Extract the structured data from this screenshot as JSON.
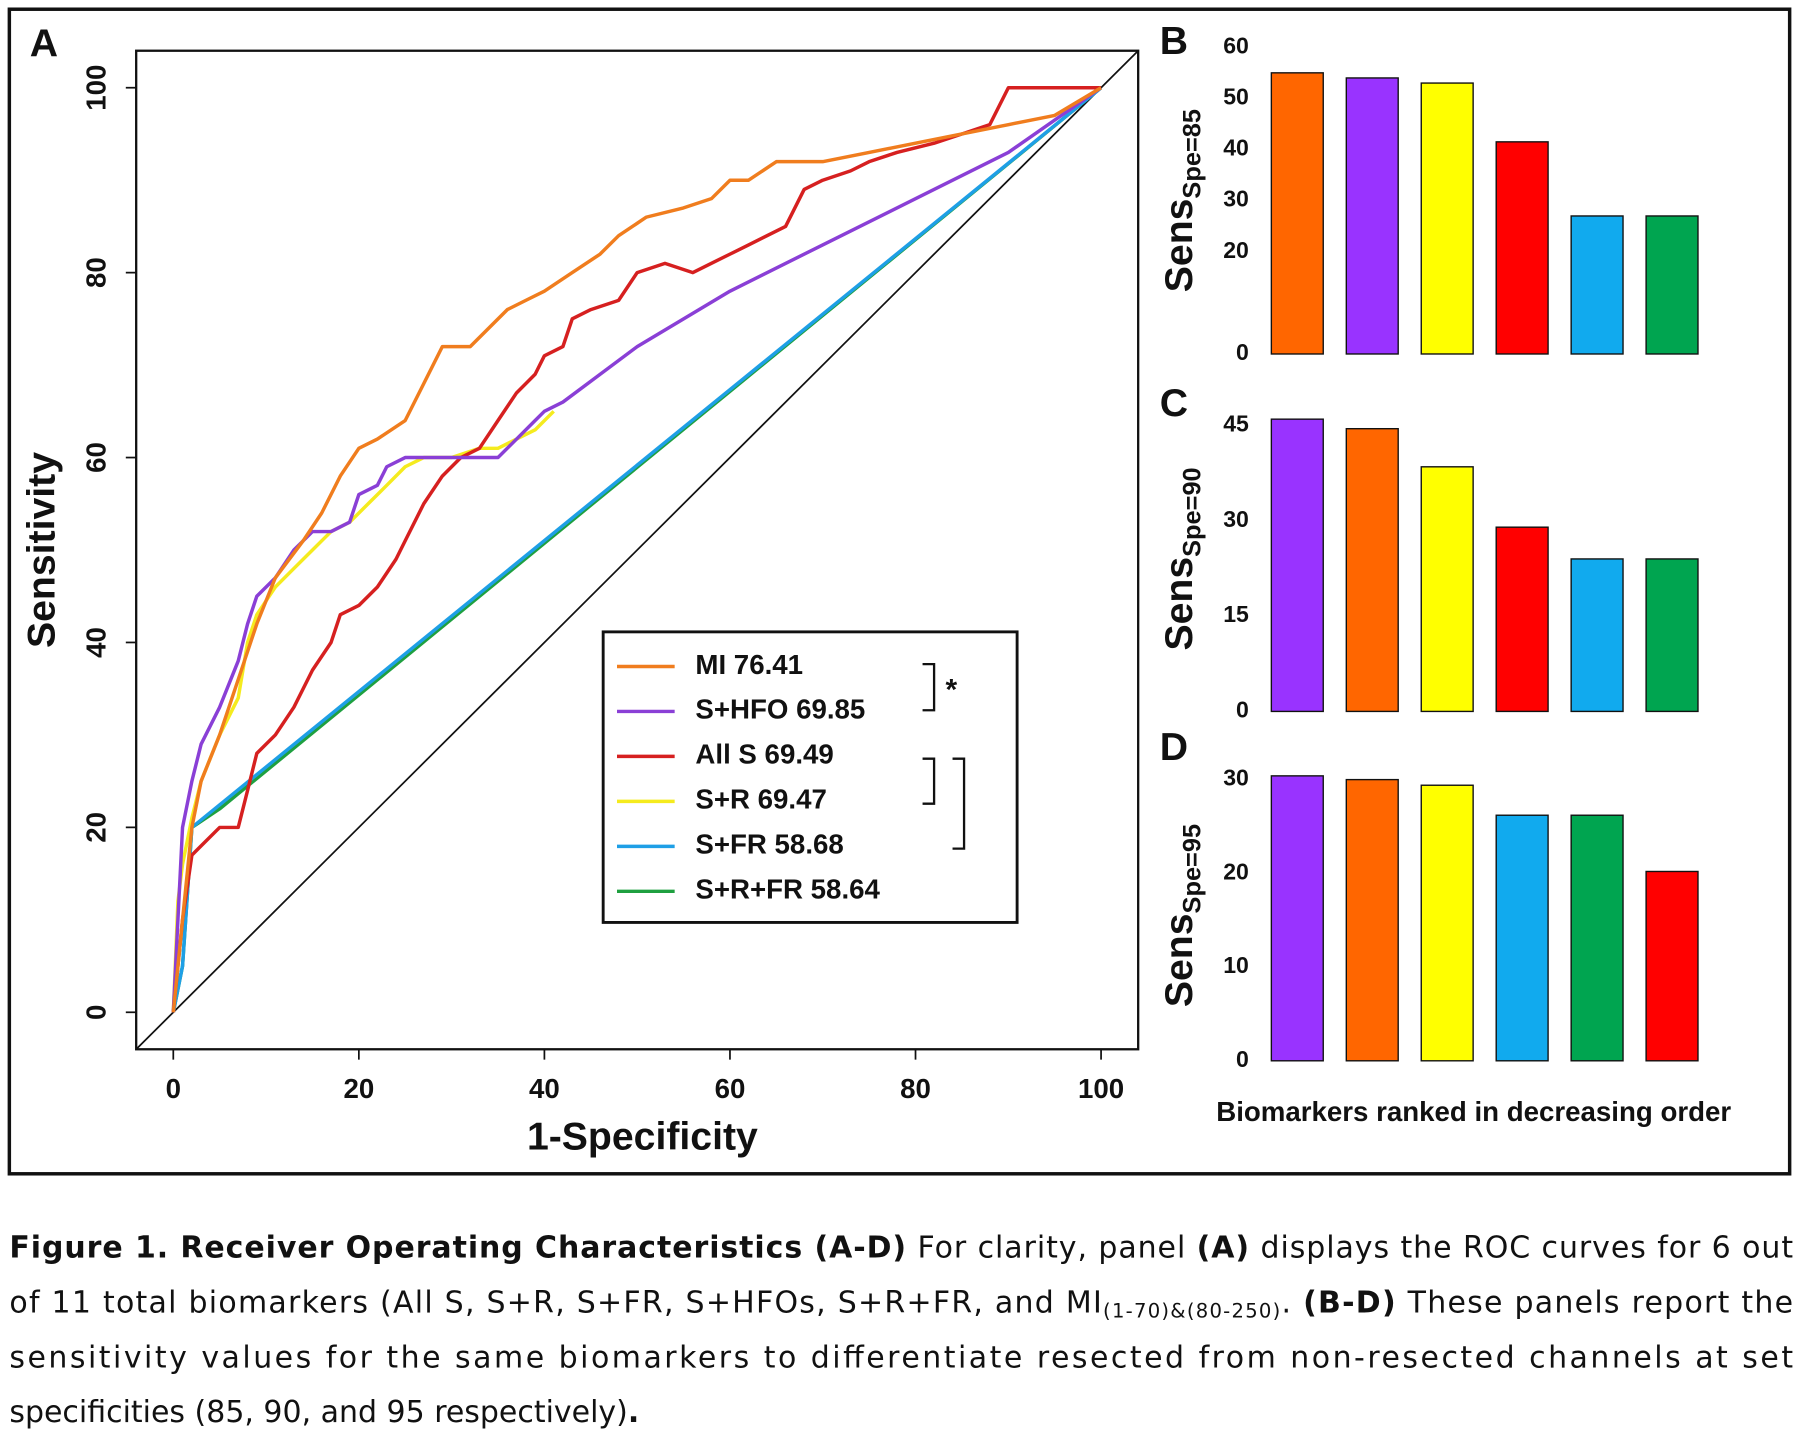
{
  "chart_data": [
    {
      "type": "line",
      "panel_label": "A",
      "xlabel": "1-Specificity",
      "ylabel": "Sensitivity",
      "xlim": [
        -4,
        104
      ],
      "ylim": [
        -4,
        104
      ],
      "xticks": [
        0,
        20,
        40,
        60,
        80,
        100
      ],
      "yticks": [
        0,
        20,
        40,
        60,
        80,
        100
      ],
      "legend": "lower right",
      "annotation": "*",
      "series": [
        {
          "name": "MI 76.41",
          "color": "#f07d1e",
          "x": [
            0,
            1,
            2,
            3,
            5,
            7,
            9,
            11,
            14,
            16,
            18,
            20,
            22,
            25,
            27,
            29,
            32,
            34,
            36,
            38,
            40,
            43,
            46,
            48,
            51,
            55,
            58,
            60,
            62,
            65,
            70,
            75,
            80,
            85,
            90,
            95,
            100
          ],
          "values": [
            0,
            10,
            20,
            25,
            30,
            36,
            42,
            47,
            51,
            54,
            58,
            61,
            62,
            64,
            68,
            72,
            72,
            74,
            76,
            77,
            78,
            80,
            82,
            84,
            86,
            87,
            88,
            90,
            90,
            92,
            92,
            93,
            94,
            95,
            96,
            97,
            100
          ]
        },
        {
          "name": "S+HFO 69.85",
          "color": "#8a3fd6",
          "x": [
            0,
            0.5,
            1,
            2,
            3,
            5,
            7,
            8,
            9,
            11,
            13,
            15,
            17,
            19,
            20,
            22,
            23,
            25,
            28,
            31,
            33,
            35,
            37,
            39,
            40,
            42,
            50,
            60,
            70,
            80,
            90,
            100
          ],
          "values": [
            0,
            10,
            20,
            25,
            29,
            33,
            38,
            42,
            45,
            47,
            50,
            52,
            52,
            53,
            56,
            57,
            59,
            60,
            60,
            60,
            60,
            60,
            62,
            64,
            65,
            66,
            72,
            78,
            83,
            88,
            93,
            100
          ]
        },
        {
          "name": "All S 69.49",
          "color": "#d62020",
          "x": [
            0,
            1,
            2,
            3,
            5,
            7,
            8,
            9,
            11,
            13,
            15,
            17,
            18,
            20,
            22,
            24,
            25,
            27,
            29,
            31,
            33,
            35,
            37,
            39,
            40,
            42,
            43,
            45,
            48,
            50,
            53,
            56,
            58,
            60,
            62,
            64,
            66,
            68,
            70,
            73,
            75,
            78,
            82,
            85,
            88,
            90,
            95,
            100
          ],
          "values": [
            0,
            10,
            17,
            18,
            20,
            20,
            24,
            28,
            30,
            33,
            37,
            40,
            43,
            44,
            46,
            49,
            51,
            55,
            58,
            60,
            61,
            64,
            67,
            69,
            71,
            72,
            75,
            76,
            77,
            80,
            81,
            80,
            81,
            82,
            83,
            84,
            85,
            89,
            90,
            91,
            92,
            93,
            94,
            95,
            96,
            100,
            100,
            100
          ]
        },
        {
          "name": "S+R 69.47",
          "color": "#f5eb1e",
          "x": [
            0,
            0.5,
            1,
            2,
            3,
            5,
            7,
            8,
            9,
            11,
            13,
            15,
            17,
            19,
            21,
            23,
            25,
            27,
            30,
            33,
            35,
            37,
            39,
            41
          ],
          "values": [
            0,
            12,
            16,
            21,
            25,
            30,
            34,
            40,
            43,
            46,
            48,
            50,
            52,
            53,
            55,
            57,
            59,
            60,
            60,
            61,
            61,
            62,
            63,
            65
          ]
        },
        {
          "name": "S+FR 58.68",
          "color": "#1e9fe6",
          "x": [
            0,
            1,
            2,
            100
          ],
          "values": [
            0,
            5,
            20,
            100
          ]
        },
        {
          "name": "S+R+FR 58.64",
          "color": "#1fa040",
          "x": [
            0,
            1,
            2,
            5,
            100
          ],
          "values": [
            0,
            5,
            20,
            22,
            100
          ]
        }
      ]
    },
    {
      "type": "bar",
      "panel_label": "B",
      "ylabel": "Sens",
      "ylabel_subscript": "Spe=85",
      "categories": [
        null,
        null,
        null,
        null,
        null,
        null
      ],
      "values": [
        55,
        54,
        53,
        41.5,
        27,
        27
      ],
      "colors": [
        "#ff6600",
        "#9933ff",
        "#ffff00",
        "#ff0000",
        "#11aaee",
        "#00a550"
      ],
      "ylim": [
        0,
        60
      ],
      "yticks": [
        0,
        20,
        30,
        40,
        50,
        60
      ]
    },
    {
      "type": "bar",
      "panel_label": "C",
      "ylabel": "Sens",
      "ylabel_subscript": "Spe=90",
      "categories": [
        null,
        null,
        null,
        null,
        null,
        null
      ],
      "values": [
        46,
        44.5,
        38.5,
        29,
        24,
        24
      ],
      "colors": [
        "#9933ff",
        "#ff6600",
        "#ffff00",
        "#ff0000",
        "#11aaee",
        "#00a550"
      ],
      "ylim": [
        0,
        48
      ],
      "yticks": [
        0,
        15,
        30,
        45
      ]
    },
    {
      "type": "bar",
      "panel_label": "D",
      "ylabel": "Sens",
      "ylabel_subscript": "Spe=95",
      "xlabel": "Biomarkers ranked in decreasing order",
      "categories": [
        null,
        null,
        null,
        null,
        null,
        null
      ],
      "values": [
        30.4,
        30,
        29.4,
        26.2,
        26.2,
        20.2
      ],
      "colors": [
        "#9933ff",
        "#ff6600",
        "#ffff00",
        "#11aaee",
        "#00a550",
        "#ff0000"
      ],
      "ylim": [
        0,
        31
      ],
      "yticks": [
        0,
        10,
        20,
        30
      ]
    }
  ],
  "caption": {
    "lines": [
      [
        {
          "text": "Figure 1. Receiver Operating Characteristics (A-D)",
          "bold": true
        },
        {
          "text": " For clarity, panel "
        },
        {
          "text": "(A)",
          "bold": true
        },
        {
          "text": " displays the ROC curves for 6 out"
        }
      ],
      [
        {
          "text": "of 11 total biomarkers (All S, S+R, S+FR, S+HFOs, S+R+FR, and MI"
        },
        {
          "text": "(1-70)&(80-250)",
          "sub": true
        },
        {
          "text": ". "
        },
        {
          "text": "(B-D)",
          "bold": true
        },
        {
          "text": " These panels report the"
        }
      ],
      [
        {
          "text": "sensitivity values for the same biomarkers to differentiate resected from non-resected channels at set"
        }
      ],
      [
        {
          "text": "specificities (85, 90, and 95 respectively)"
        },
        {
          "text": ".",
          "bold": true
        }
      ]
    ]
  }
}
